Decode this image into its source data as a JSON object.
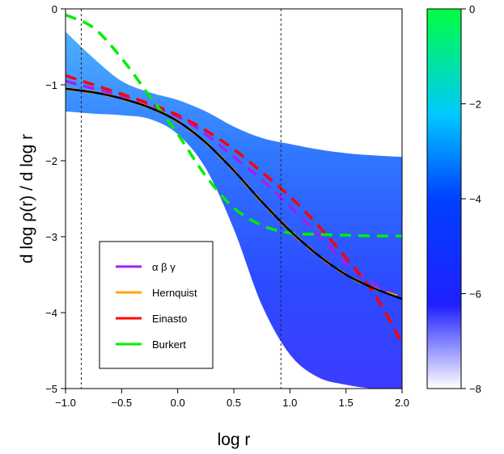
{
  "chart_data": {
    "type": "line",
    "title": "",
    "xlabel": "log r",
    "ylabel": "d log ρ(r) / d log r",
    "xlim": [
      -1.0,
      2.0
    ],
    "ylim": [
      -5,
      0
    ],
    "x_ticks": [
      "−1.0",
      "−0.5",
      "0.0",
      "0.5",
      "1.0",
      "1.5",
      "2.0"
    ],
    "x_tick_values": [
      -1.0,
      -0.5,
      0.0,
      0.5,
      1.0,
      1.5,
      2.0
    ],
    "y_ticks": [
      "−5",
      "−4",
      "−3",
      "−2",
      "−1",
      "0"
    ],
    "y_tick_values": [
      -5,
      -4,
      -3,
      -2,
      -1,
      0
    ],
    "vertical_lines": [
      -0.86,
      0.92
    ],
    "density_band": {
      "x": [
        -1.0,
        -0.75,
        -0.5,
        -0.25,
        0.0,
        0.25,
        0.5,
        0.75,
        1.0,
        1.25,
        1.5,
        1.75,
        2.0
      ],
      "upper": [
        -0.3,
        -0.65,
        -0.95,
        -1.1,
        -1.2,
        -1.35,
        -1.55,
        -1.7,
        -1.78,
        -1.85,
        -1.9,
        -1.93,
        -1.95
      ],
      "lower": [
        -1.35,
        -1.38,
        -1.4,
        -1.45,
        -1.65,
        -2.1,
        -2.9,
        -3.9,
        -4.55,
        -4.85,
        -4.95,
        -5.0,
        -5.0
      ]
    },
    "series": [
      {
        "name": "α β γ",
        "color": "#a020f0",
        "style": "dashed",
        "x": [
          -1.0,
          -0.75,
          -0.5,
          -0.25,
          0.0,
          0.25,
          0.5,
          0.75,
          1.0,
          1.25,
          1.5,
          1.75,
          2.0
        ],
        "y": [
          -0.95,
          -1.05,
          -1.15,
          -1.27,
          -1.42,
          -1.65,
          -1.95,
          -2.25,
          -2.6,
          -2.97,
          -3.35,
          -3.62,
          -3.82
        ]
      },
      {
        "name": "Hernquist",
        "color": "#ffa500",
        "style": "dashed",
        "x": [
          -1.0,
          -0.75,
          -0.5,
          -0.25,
          0.0,
          0.25,
          0.5,
          0.75,
          1.0,
          1.25,
          1.5,
          1.75,
          2.0
        ],
        "y": [
          -1.05,
          -1.1,
          -1.18,
          -1.3,
          -1.48,
          -1.76,
          -2.13,
          -2.54,
          -2.92,
          -3.24,
          -3.5,
          -3.68,
          -3.8
        ]
      },
      {
        "name": "Einasto",
        "color": "#ff0000",
        "style": "dashed",
        "x": [
          -1.0,
          -0.75,
          -0.5,
          -0.25,
          0.0,
          0.25,
          0.5,
          0.75,
          1.0,
          1.25,
          1.5,
          1.75,
          2.0
        ],
        "y": [
          -0.88,
          -1.0,
          -1.12,
          -1.25,
          -1.4,
          -1.6,
          -1.85,
          -2.15,
          -2.47,
          -2.85,
          -3.28,
          -3.75,
          -4.4
        ]
      },
      {
        "name": "Burkert",
        "color": "#00ee00",
        "style": "dashed",
        "x": [
          -1.0,
          -0.75,
          -0.5,
          -0.25,
          0.0,
          0.25,
          0.5,
          0.75,
          1.0,
          1.25,
          1.5,
          1.75,
          2.0
        ],
        "y": [
          -0.08,
          -0.25,
          -0.65,
          -1.15,
          -1.65,
          -2.2,
          -2.62,
          -2.85,
          -2.95,
          -2.97,
          -2.98,
          -2.99,
          -2.99
        ]
      },
      {
        "color": "#000000",
        "style": "solid",
        "x": [
          -1.0,
          -0.75,
          -0.5,
          -0.25,
          0.0,
          0.25,
          0.5,
          0.75,
          1.0,
          1.25,
          1.5,
          1.75,
          2.0
        ],
        "y": [
          -1.05,
          -1.1,
          -1.18,
          -1.3,
          -1.48,
          -1.76,
          -2.13,
          -2.54,
          -2.92,
          -3.24,
          -3.5,
          -3.68,
          -3.82
        ]
      }
    ],
    "legend": {
      "placement": "bottom-left",
      "entries": [
        {
          "label": "α β γ",
          "color": "#a020f0"
        },
        {
          "label": "Hernquist",
          "color": "#ffa500"
        },
        {
          "label": "Einasto",
          "color": "#ff0000"
        },
        {
          "label": "Burkert",
          "color": "#00ee00"
        }
      ]
    },
    "colorbar": {
      "min": -8,
      "max": 0,
      "ticks": [
        "−8",
        "−6",
        "−4",
        "−2",
        "0"
      ],
      "tick_values": [
        -8,
        -6,
        -4,
        -2,
        0
      ],
      "colors": [
        "#ffffff",
        "#0000ff",
        "#00c0ff",
        "#00ff60"
      ]
    }
  }
}
